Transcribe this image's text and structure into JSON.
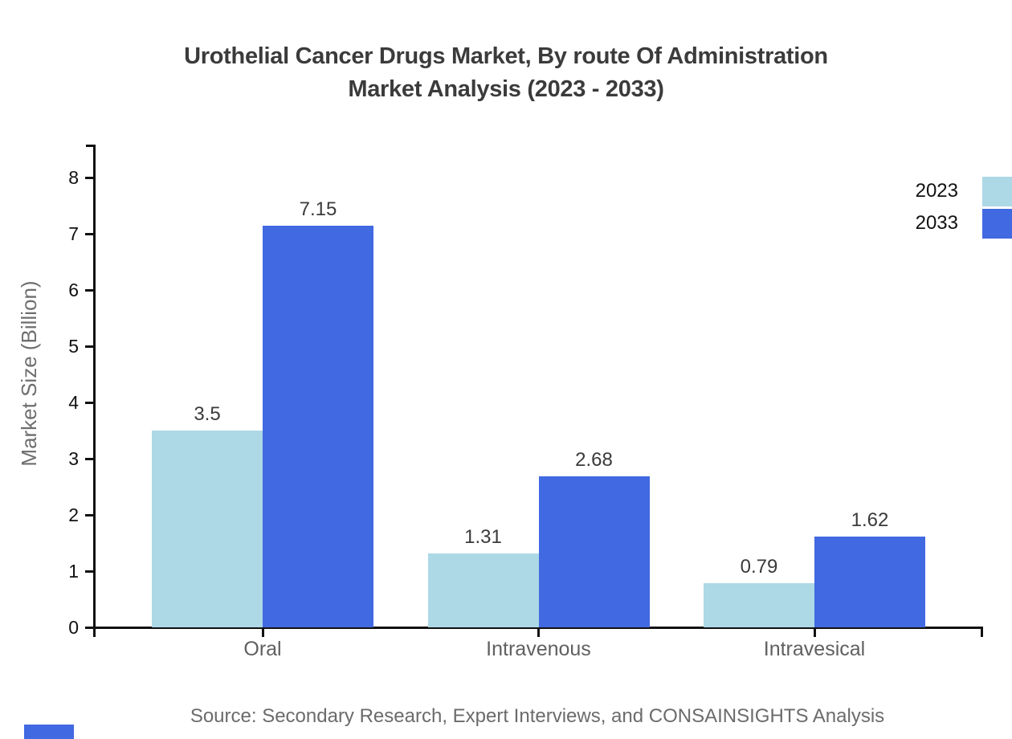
{
  "title": {
    "line1": "Urothelial Cancer Drugs Market, By route Of Administration",
    "line2": "Market Analysis (2023 - 2033)"
  },
  "legend": [
    {
      "label": "2023",
      "color": "#ADD8E6"
    },
    {
      "label": "2033",
      "color": "#4169E1"
    }
  ],
  "chart_data": {
    "type": "bar",
    "title": "Urothelial Cancer Drugs Market, By route Of Administration Market Analysis (2023 - 2033)",
    "categories": [
      "Oral",
      "Intravenous",
      "Intravesical"
    ],
    "series": [
      {
        "name": "2023",
        "color": "#ADD8E6",
        "values": [
          3.5,
          1.31,
          0.79
        ],
        "labels": [
          "3.5",
          "1.31",
          "0.79"
        ]
      },
      {
        "name": "2033",
        "color": "#4169E1",
        "values": [
          7.15,
          2.68,
          1.62
        ],
        "labels": [
          "7.15",
          "2.68",
          "1.62"
        ]
      }
    ],
    "xlabel": "",
    "ylabel": "Market Size (Billion)",
    "ylim": [
      0,
      8
    ],
    "yticks": [
      0,
      1,
      2,
      3,
      4,
      5,
      6,
      7,
      8
    ],
    "grid": false,
    "legend_position": "upper right"
  },
  "source": "Source: Secondary Research, Expert Interviews, and CONSAINSIGHTS Analysis",
  "colors": {
    "title": "#3b3b3b",
    "axis": "#111111",
    "tick_label": "#111111",
    "category_label": "#606060",
    "value_label": "#3a3a3a",
    "muted_text": "#6b6b6b",
    "series_2023": "#ADD8E6",
    "series_2033": "#4169E1",
    "background": "#ffffff"
  }
}
